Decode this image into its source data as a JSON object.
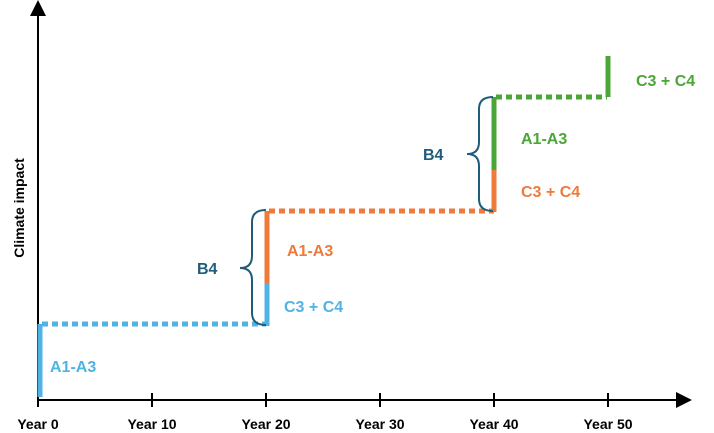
{
  "axes": {
    "y_label": "Climate impact",
    "x_ticks": [
      "Year 0",
      "Year 10",
      "Year 20",
      "Year 30",
      "Year 40",
      "Year 50"
    ]
  },
  "colors": {
    "axis": "#000000",
    "blue": "#4fb3e3",
    "orange": "#ee7a3b",
    "green": "#4aa636",
    "dark_blue": "#1f5c7a"
  },
  "labels": {
    "stage1_a1_a3": "A1-A3",
    "stage1_c3_c4": "C3 + C4",
    "stage1_b4": "B4",
    "stage2_a1_a3": "A1-A3",
    "stage2_c3_c4": "C3 + C4",
    "stage2_b4": "B4",
    "stage3_a1_a3": "A1-A3",
    "stage3_c3_c4": "C3 + C4"
  }
}
